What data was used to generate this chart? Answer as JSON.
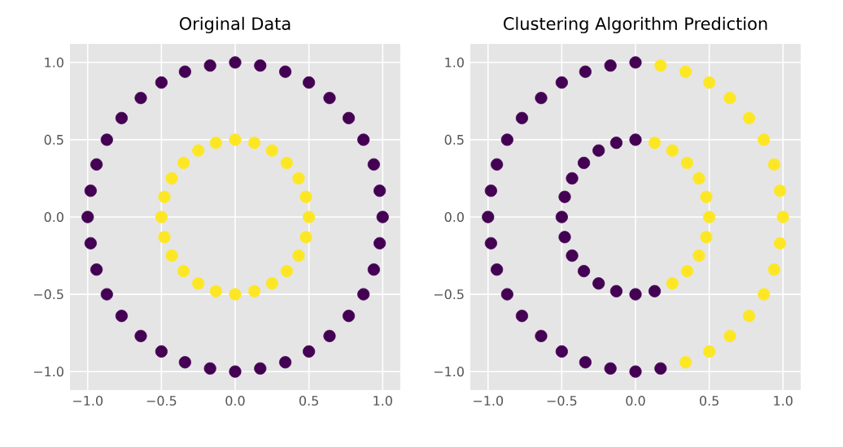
{
  "chart_data": [
    {
      "type": "scatter",
      "title": "Original Data",
      "xlim": [
        -1.12,
        1.12
      ],
      "ylim": [
        -1.12,
        1.12
      ],
      "grid": true,
      "marker": "circle",
      "xticks": [
        {
          "value": -1.0,
          "label": "−1.0"
        },
        {
          "value": -0.5,
          "label": "−0.5"
        },
        {
          "value": 0.0,
          "label": "0.0"
        },
        {
          "value": 0.5,
          "label": "0.5"
        },
        {
          "value": 1.0,
          "label": "1.0"
        }
      ],
      "yticks": [
        {
          "value": -1.0,
          "label": "−1.0"
        },
        {
          "value": -0.5,
          "label": "−0.5"
        },
        {
          "value": 0.0,
          "label": "0.0"
        },
        {
          "value": 0.5,
          "label": "0.5"
        },
        {
          "value": 1.0,
          "label": "1.0"
        }
      ],
      "series": [
        {
          "color": "#440154",
          "x": [
            1,
            0.98,
            0.94,
            0.87,
            0.77,
            0.64,
            0.5,
            0.34,
            0.17,
            0,
            -0.17,
            -0.34,
            -0.5,
            -0.64,
            -0.77,
            -0.87,
            -0.94,
            -0.98,
            -1,
            -0.98,
            -0.94,
            -0.87,
            -0.77,
            -0.64,
            -0.5,
            -0.34,
            -0.17,
            0,
            0.17,
            0.34,
            0.5,
            0.64,
            0.77,
            0.87,
            0.94,
            0.98
          ],
          "values": [
            0,
            0.17,
            0.34,
            0.5,
            0.64,
            0.77,
            0.87,
            0.94,
            0.98,
            1,
            0.98,
            0.94,
            0.87,
            0.77,
            0.64,
            0.5,
            0.34,
            0.17,
            0,
            -0.17,
            -0.34,
            -0.5,
            -0.64,
            -0.77,
            -0.87,
            -0.94,
            -0.98,
            -1,
            -0.98,
            -0.94,
            -0.87,
            -0.77,
            -0.64,
            -0.5,
            -0.34,
            -0.17
          ]
        },
        {
          "color": "#fde725",
          "x": [
            0.5,
            0.48,
            0.43,
            0.35,
            0.25,
            0.13,
            0,
            -0.13,
            -0.25,
            -0.35,
            -0.43,
            -0.48,
            -0.5,
            -0.48,
            -0.43,
            -0.35,
            -0.25,
            -0.13,
            0,
            0.13,
            0.25,
            0.35,
            0.43,
            0.48
          ],
          "values": [
            0,
            0.13,
            0.25,
            0.35,
            0.43,
            0.48,
            0.5,
            0.48,
            0.43,
            0.35,
            0.25,
            0.13,
            0,
            -0.13,
            -0.25,
            -0.35,
            -0.43,
            -0.48,
            -0.5,
            -0.48,
            -0.43,
            -0.35,
            -0.25,
            -0.13
          ]
        }
      ]
    },
    {
      "type": "scatter",
      "title": "Clustering Algorithm Prediction",
      "xlim": [
        -1.12,
        1.12
      ],
      "ylim": [
        -1.12,
        1.12
      ],
      "grid": true,
      "marker": "circle",
      "xticks": [
        {
          "value": -1.0,
          "label": "−1.0"
        },
        {
          "value": -0.5,
          "label": "−0.5"
        },
        {
          "value": 0.0,
          "label": "0.0"
        },
        {
          "value": 0.5,
          "label": "0.5"
        },
        {
          "value": 1.0,
          "label": "1.0"
        }
      ],
      "yticks": [
        {
          "value": -1.0,
          "label": "−1.0"
        },
        {
          "value": -0.5,
          "label": "−0.5"
        },
        {
          "value": 0.0,
          "label": "0.0"
        },
        {
          "value": 0.5,
          "label": "0.5"
        },
        {
          "value": 1.0,
          "label": "1.0"
        }
      ],
      "series": [
        {
          "color": "#440154",
          "x": [
            0,
            -0.17,
            -0.34,
            -0.5,
            -0.64,
            -0.77,
            -0.87,
            -0.94,
            -0.98,
            -1,
            -0.98,
            -0.94,
            -0.87,
            -0.77,
            -0.64,
            -0.5,
            -0.34,
            -0.17,
            0,
            0.17,
            0,
            -0.13,
            -0.25,
            -0.35,
            -0.43,
            -0.48,
            -0.5,
            -0.48,
            -0.43,
            -0.35,
            -0.25,
            -0.13,
            0,
            0.13
          ],
          "values": [
            1,
            0.98,
            0.94,
            0.87,
            0.77,
            0.64,
            0.5,
            0.34,
            0.17,
            0,
            -0.17,
            -0.34,
            -0.5,
            -0.64,
            -0.77,
            -0.87,
            -0.94,
            -0.98,
            -1,
            -0.98,
            0.5,
            0.48,
            0.43,
            0.35,
            0.25,
            0.13,
            0,
            -0.13,
            -0.25,
            -0.35,
            -0.43,
            -0.48,
            -0.5,
            -0.48
          ]
        },
        {
          "color": "#fde725",
          "x": [
            0.34,
            0.5,
            0.64,
            0.77,
            0.87,
            0.94,
            0.98,
            1,
            0.98,
            0.94,
            0.87,
            0.77,
            0.64,
            0.5,
            0.34,
            0.17,
            0.25,
            0.35,
            0.43,
            0.48,
            0.5,
            0.48,
            0.43,
            0.35,
            0.25,
            0.13
          ],
          "values": [
            -0.94,
            -0.87,
            -0.77,
            -0.64,
            -0.5,
            -0.34,
            -0.17,
            0,
            0.17,
            0.34,
            0.5,
            0.64,
            0.77,
            0.87,
            0.94,
            0.98,
            -0.43,
            -0.35,
            -0.25,
            -0.13,
            0,
            0.13,
            0.25,
            0.35,
            0.43,
            0.48
          ]
        }
      ]
    }
  ]
}
